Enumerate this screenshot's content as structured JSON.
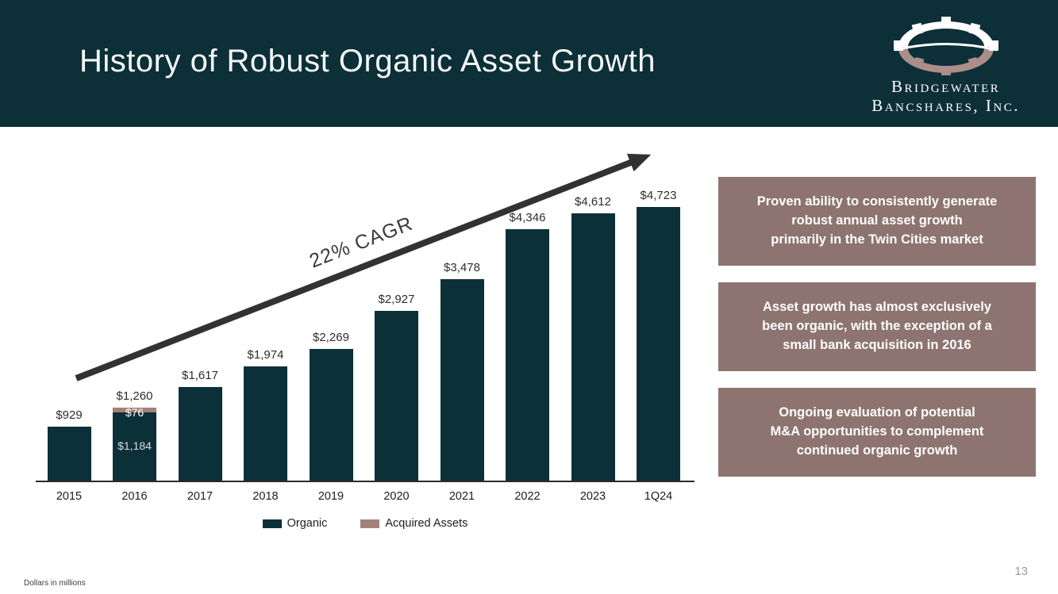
{
  "slide": {
    "title": "History of Robust Organic Asset Growth",
    "logo": {
      "line1": "Bridgewater",
      "line2": "Bancshares, Inc."
    },
    "footnote": "Dollars in millions",
    "page_number": "13"
  },
  "colors": {
    "header_bg": "#0c2f38",
    "organic": "#0c3038",
    "acquired": "#a38179",
    "callout_bg": "#8d7470",
    "arrow": "#323232"
  },
  "chart_data": {
    "type": "bar",
    "stacked": true,
    "title": "",
    "units": "Dollars in millions",
    "categories": [
      "2015",
      "2016",
      "2017",
      "2018",
      "2019",
      "2020",
      "2021",
      "2022",
      "2023",
      "1Q24"
    ],
    "series": [
      {
        "name": "Organic",
        "color": "#0c3038",
        "values": [
          929,
          1184,
          1617,
          1974,
          2269,
          2927,
          3478,
          4346,
          4612,
          4723
        ]
      },
      {
        "name": "Acquired Assets",
        "color": "#a38179",
        "values": [
          0,
          76,
          0,
          0,
          0,
          0,
          0,
          0,
          0,
          0
        ]
      }
    ],
    "totals": [
      929,
      1260,
      1617,
      1974,
      2269,
      2927,
      3478,
      4346,
      4612,
      4723
    ],
    "total_labels": [
      "$929",
      "$1,260",
      "$1,617",
      "$1,974",
      "$2,269",
      "$2,927",
      "$3,478",
      "$4,346",
      "$4,612",
      "$4,723"
    ],
    "inner_labels": [
      {
        "category": "2016",
        "acquired": "$76",
        "organic": "$1,184"
      }
    ],
    "annotation": "22% CAGR",
    "ylim": [
      0,
      5000
    ],
    "gridlines": false,
    "legend_position": "bottom"
  },
  "callouts": [
    {
      "text": "Proven ability to consistently generate\nrobust annual asset growth\nprimarily in the Twin Cities market"
    },
    {
      "text": "Asset growth has almost exclusively\nbeen organic, with the exception of a\nsmall bank acquisition in 2016"
    },
    {
      "text": "Ongoing evaluation of potential\nM&A opportunities to complement\ncontinued organic growth"
    }
  ]
}
